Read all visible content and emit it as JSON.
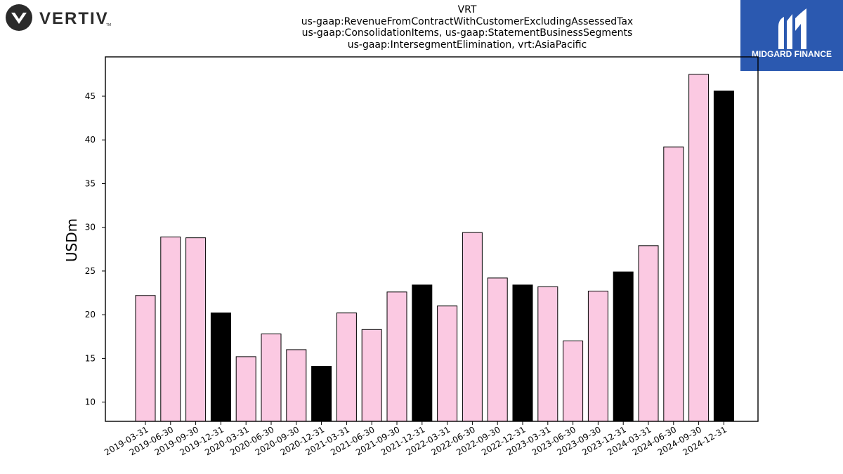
{
  "logos": {
    "left_text": "VERTIV",
    "left_tm": "TM",
    "right_text": "MIDGARD FINANCE",
    "right_bg": "#2b59b0"
  },
  "colors": {
    "bar_pink": "#fbc9e2",
    "bar_black": "#000000",
    "edge": "#000000"
  },
  "chart_data": {
    "type": "bar",
    "title_lines": [
      "VRT",
      "us-gaap:RevenueFromContractWithCustomerExcludingAssessedTax",
      "us-gaap:ConsolidationItems, us-gaap:StatementBusinessSegments",
      "us-gaap:IntersegmentElimination, vrt:AsiaPacific"
    ],
    "ylabel": "USDm",
    "xlabel": "",
    "ylim": [
      7.8,
      49.5
    ],
    "yticks": [
      10,
      15,
      20,
      25,
      30,
      35,
      40,
      45
    ],
    "grid": false,
    "categories": [
      "2019-03-31",
      "2019-06-30",
      "2019-09-30",
      "2019-12-31",
      "2020-03-31",
      "2020-06-30",
      "2020-09-30",
      "2020-12-31",
      "2021-03-31",
      "2021-06-30",
      "2021-09-30",
      "2021-12-31",
      "2022-03-31",
      "2022-06-30",
      "2022-09-30",
      "2022-12-31",
      "2023-03-31",
      "2023-06-30",
      "2023-09-30",
      "2023-12-31",
      "2024-03-31",
      "2024-06-30",
      "2024-09-30",
      "2024-12-31"
    ],
    "values": [
      22.2,
      28.9,
      28.8,
      20.2,
      15.2,
      17.8,
      16.0,
      14.1,
      20.2,
      18.3,
      22.6,
      23.4,
      21.0,
      29.4,
      24.2,
      23.4,
      23.2,
      17.0,
      22.7,
      24.9,
      27.9,
      39.2,
      47.5,
      45.6
    ],
    "highlight": [
      false,
      false,
      false,
      true,
      false,
      false,
      false,
      true,
      false,
      false,
      false,
      true,
      false,
      false,
      false,
      true,
      false,
      false,
      false,
      true,
      false,
      false,
      false,
      true
    ]
  }
}
